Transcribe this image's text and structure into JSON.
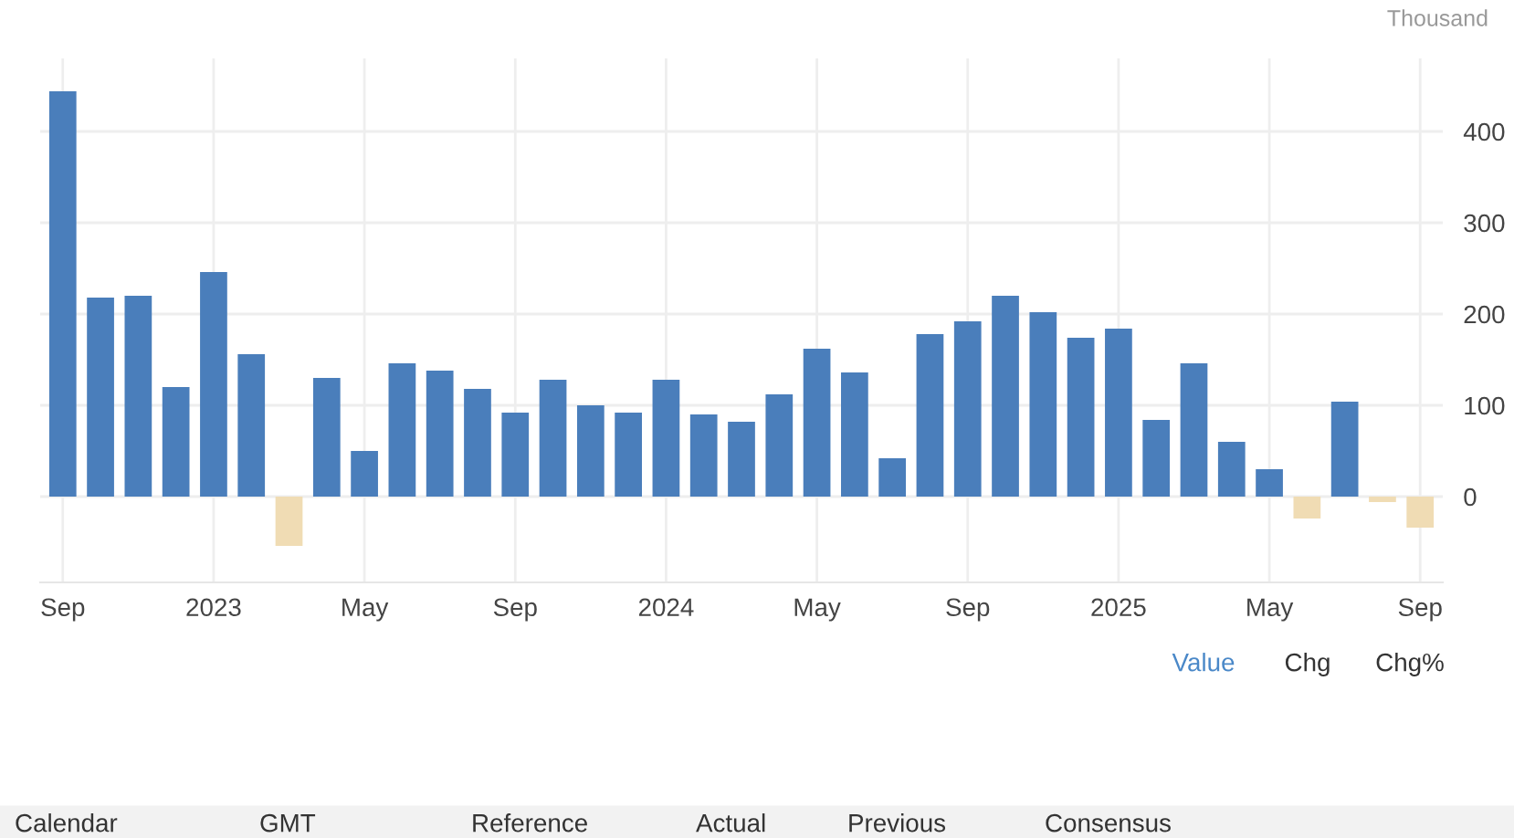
{
  "chart_data": {
    "type": "bar",
    "ylabel": "Thousand",
    "categories": [
      "Sep",
      null,
      null,
      null,
      "2023",
      null,
      null,
      null,
      "May",
      null,
      null,
      null,
      "Sep",
      null,
      null,
      null,
      "2024",
      null,
      null,
      null,
      "May",
      null,
      null,
      null,
      "Sep",
      null,
      null,
      null,
      "2025",
      null,
      null,
      null,
      "May",
      null,
      null,
      null,
      "Sep"
    ],
    "values": [
      444,
      218,
      220,
      120,
      246,
      156,
      -54,
      130,
      50,
      146,
      138,
      118,
      92,
      128,
      100,
      92,
      128,
      90,
      82,
      112,
      162,
      136,
      42,
      178,
      192,
      220,
      202,
      174,
      184,
      84,
      146,
      60,
      30,
      -24,
      104,
      -6,
      -34
    ],
    "colors": [
      "#4a7ebb",
      "#4a7ebb",
      "#4a7ebb",
      "#4a7ebb",
      "#4a7ebb",
      "#4a7ebb",
      "#f0dcb4",
      "#4a7ebb",
      "#4a7ebb",
      "#4a7ebb",
      "#4a7ebb",
      "#4a7ebb",
      "#4a7ebb",
      "#4a7ebb",
      "#4a7ebb",
      "#4a7ebb",
      "#4a7ebb",
      "#4a7ebb",
      "#4a7ebb",
      "#4a7ebb",
      "#4a7ebb",
      "#4a7ebb",
      "#4a7ebb",
      "#4a7ebb",
      "#4a7ebb",
      "#4a7ebb",
      "#4a7ebb",
      "#4a7ebb",
      "#4a7ebb",
      "#4a7ebb",
      "#4a7ebb",
      "#4a7ebb",
      "#4a7ebb",
      "#f0dcb4",
      "#4a7ebb",
      "#f0dcb4",
      "#f0dcb4"
    ],
    "ylim": [
      -94,
      480
    ],
    "yticks": [
      0,
      100,
      200,
      300,
      400
    ],
    "grid": true,
    "annotations": [
      "Value",
      "Chg",
      "Chg%",
      "Calendar",
      "GMT",
      "Reference",
      "Actual",
      "Previous",
      "Consensus"
    ]
  }
}
